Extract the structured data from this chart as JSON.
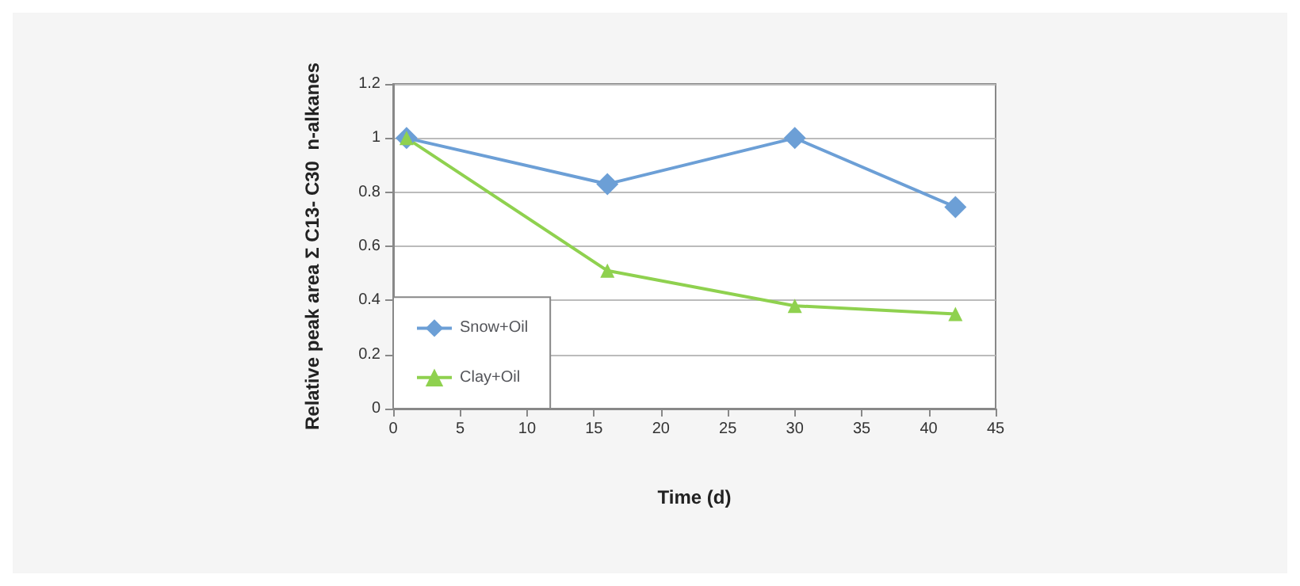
{
  "chart_data": {
    "type": "line",
    "xlabel": "Time (d)",
    "ylabel": "Relative peak area Σ C13- C30  n-alkanes",
    "xlim": [
      0,
      45
    ],
    "xticks": [
      0,
      5,
      10,
      15,
      20,
      25,
      30,
      35,
      40,
      45
    ],
    "ylim": [
      0,
      1.2
    ],
    "yticks": [
      0,
      0.2,
      0.4,
      0.6,
      0.8,
      1,
      1.2
    ],
    "grid": "y",
    "legend": "bottom left",
    "series": [
      {
        "name": "Snow+Oil",
        "color": "#6c9fd6",
        "marker": "diamond",
        "x": [
          1,
          16,
          30,
          42
        ],
        "values": [
          1,
          0.83,
          1,
          0.745
        ]
      },
      {
        "name": "Clay+Oil",
        "color": "#8fd14f",
        "marker": "triangle",
        "x": [
          1,
          16,
          30,
          42
        ],
        "values": [
          1,
          0.51,
          0.38,
          0.35
        ]
      }
    ]
  }
}
